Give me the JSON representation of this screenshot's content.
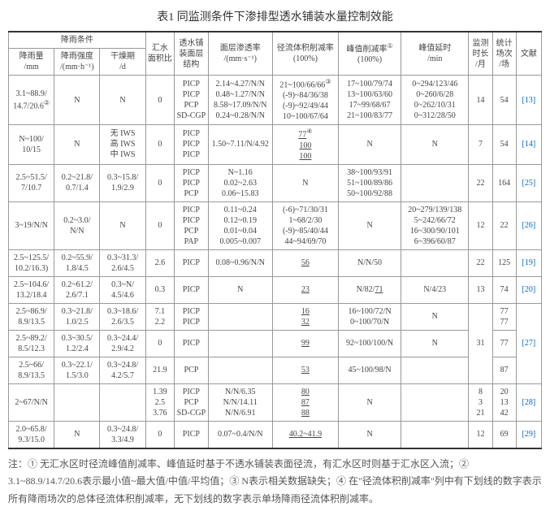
{
  "title": "表1 同监测条件下渗排型透水铺装水量控制效能",
  "headers": {
    "group1": "降雨条件",
    "col1": "降雨量\n/mm",
    "col2": "降雨强度\n/(mm·h⁻¹)",
    "col3": "干燥期\n/d",
    "col4": "汇水\n面积比",
    "col5": "透水铺\n装面层\n结构",
    "col6": "面层渗透率\n/(mm·s⁻¹)",
    "col7_a": "径流体积削减率",
    "col7_b": "(100%)",
    "col8_a": "峰值削减率",
    "col8_b": "(100%)",
    "col8_sup": "①",
    "col9": "峰值延时\n/min",
    "col10": "监测\n时长\n/月",
    "col11": "统计\n场次\n/场",
    "col12": "文献"
  },
  "rows": [
    {
      "c1": "3.1~88.9/\n14.7/20.6",
      "c1_sup": "②",
      "c2": "N",
      "c3": "N",
      "c4": "0",
      "c5": "PICP\nPICP\nPCP\nSD-CGP",
      "c6": "2.14~4.27/N/N\n0.48~1.27/N/N\n8.58~17.09/N/N\n0.24~0.28/N/N",
      "c7_sup": "③",
      "c7": "21~100/66/66\n(-9)~84/36/38\n(-9)~92/49/44\n10~100/67/64",
      "c8": "17~100/79/74\n13~100/63/60\n17~99/68/67\n21~100/83/77",
      "c9": "0~294/123/46\n0~260/6/28\n0~262/10/31\n0~312/28/50",
      "c10": "14",
      "c11": "54",
      "c12": "[13]"
    },
    {
      "c1": "N~100/\n10/15",
      "c2": "N",
      "c3": "无 IWS\n高 IWS\n中 IWS",
      "c4": "0",
      "c5": "PICP\nPICP\nPICP",
      "c6": "1.50~7.11/N/4.92",
      "c7_sup": "④",
      "c7": "77\n100\n100",
      "c8": "N",
      "c9": "N",
      "c10": "7",
      "c11": "54",
      "c12": "[14]"
    },
    {
      "c1": "2.5~51.5/\n7/10.7",
      "c2": "0.2~21.8/\n0.7/1.4",
      "c3": "0.3~15.8/\n1.9/2.9",
      "c4": "0",
      "c5": "PICP\nPICP\nPCP",
      "c6": "N~1.16\n0.02~2.63\n0.06~15.83",
      "c7": "N",
      "c8": "38~100/93/91\n51~100/89/86\n50~100/92/88",
      "c9": "",
      "c10": "22",
      "c11": "164",
      "c12": "[25]"
    },
    {
      "c1": "3~19/N/N",
      "c2": "0.2~3.0/\nN/N",
      "c3": "N",
      "c4": "0",
      "c5": "PICP\nPICP\nPCP\nPAP",
      "c6": "0.11~0.24\n0.12~0.19\n0.01~0.04\n0.005~0.007",
      "c7": "(-6)~71/30/31\n1~68/2/30\n(-9)~85/40/44\n44~94/69/70",
      "c8": "N",
      "c9": "20~279/139/138\n5~242/66/72\n16~300/90/101\n6~396/60/87",
      "c10": "12",
      "c11": "22",
      "c12": "[26]"
    },
    {
      "c1": "2.5~125.5/\n10.2/16.3)",
      "c2": "0.2~55.9/\n1.8/4.5",
      "c3": "0.3~31.3/\n2.6/4.5",
      "c4": "2.6",
      "c5": "PICP",
      "c6": "0.08~0.96/N/N",
      "c7": "56",
      "c8": "N/N/50",
      "c9": "",
      "c10": "22",
      "c11": "125",
      "c12": "[19]"
    },
    {
      "c1": "2.5~104.6/\n13.2/18.4",
      "c2": "0.2~61.2/\n2.6/7.1",
      "c3": "0.3~N/\n4.5/4.6",
      "c4": "0.3",
      "c5": "PICP",
      "c6": "N",
      "c7": "23",
      "c8": "N/82/71",
      "c9": "N/4/23",
      "c10": "13",
      "c11": "74",
      "c12": "[20]"
    },
    {
      "c1": "2.5~86.9/\n8.9/13.5",
      "c2": "0.3~21.8/\n1.0/2.5",
      "c3": "0.3~18.6/\n2.6/3.5",
      "c4": "7.1\n2.2",
      "c5": "PICP\nPICP",
      "c6": "",
      "c7": "16\n32",
      "c8": "16~100/72/N\n0~100/70/N",
      "c9": "N",
      "c10_rs": "4",
      "c10": "31",
      "c11": "77\n77",
      "c12_rs": "4",
      "c12": "[27]"
    },
    {
      "c1": "2.5~89.2/\n8.5/12.3",
      "c2": "0.3~30.5/\n1.2/2.4",
      "c3": "0.3~24.4/\n2.9/4.2",
      "c4": "0",
      "c5": "PICP",
      "c6": "",
      "c7": "99",
      "c8": "92~100/100/N",
      "c9": "N",
      "c11": "77"
    },
    {
      "c1": "2.5~66/\n8.9/13.5",
      "c2": "0.3~22.1/\n1.5/3.0",
      "c3": "0.3~24.8/\n4.2/5.7",
      "c4": "21.9",
      "c5": "PCP",
      "c6": "",
      "c7": "53",
      "c8": "45~100/98/N",
      "c9": "",
      "c11": "87"
    },
    {
      "c1": "2~67/N/N",
      "c2": "",
      "c3": "",
      "c4": "1.39\n2.5\n3.76",
      "c5": "PICP\nPCP\nSD-CGP",
      "c6": "N/N/6.35\nN/N/14.11\nN/N/6.91",
      "c7": "80\n87\n88",
      "c8": "N",
      "c9": "",
      "c10": "8\n3\n21",
      "c11": "20\n13\n42",
      "c12": "[28]"
    },
    {
      "c1": "2.0~65.8/\n9.3/15.0",
      "c2": "N",
      "c3": "0.3~24.8/\n3.3/4.9",
      "c4": "0",
      "c5": "PICP",
      "c6": "0.07~0.4/N/N",
      "c7": "40.2~41.9",
      "c8": "N",
      "c9": "",
      "c10": "12",
      "c11": "69",
      "c12": "[29]"
    }
  ],
  "notes": "注：① 无汇水区时径流峰值削减率、峰值延时基于不透水铺装表面径流，有汇水区时则基于汇水区入流；② 3.1~88.9/14.7/20.6表示最小值~最大值/中值/平均值；③ N表示相关数据缺失；④ 在\"径流体积削减率\"列中有下划线的数字表示所有降雨场次的总体径流体积削减率，无下划线的数字表示单场降雨径流体积削减率。"
}
